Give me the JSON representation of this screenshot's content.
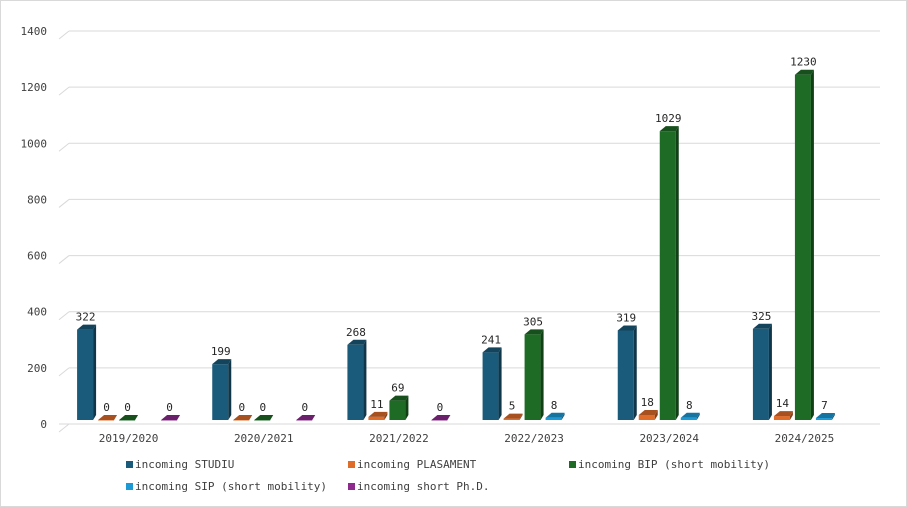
{
  "chart_data": {
    "type": "bar",
    "title": "",
    "xlabel": "",
    "ylabel": "",
    "ylim": [
      0,
      1400
    ],
    "yticks": [
      0,
      200,
      400,
      600,
      800,
      1000,
      1200,
      1400
    ],
    "grid": true,
    "legend_position": "bottom",
    "categories": [
      "2019/2020",
      "2020/2021",
      "2021/2022",
      "2022/2023",
      "2023/2024",
      "2024/2025"
    ],
    "series": [
      {
        "name": "incoming STUDIU",
        "color": "#1a5a7a",
        "values": [
          322,
          199,
          268,
          241,
          319,
          325
        ],
        "labels": [
          "322",
          "199",
          "268",
          "241",
          "319",
          "325"
        ]
      },
      {
        "name": "incoming PLASAMENT",
        "color": "#e06c2a",
        "values": [
          0,
          0,
          11,
          5,
          18,
          14
        ],
        "labels": [
          "0",
          "0",
          "11",
          "5",
          "18",
          "14"
        ]
      },
      {
        "name": "incoming BIP (short mobility)",
        "color": "#1e6b25",
        "values": [
          0,
          0,
          69,
          305,
          1029,
          1230
        ],
        "labels": [
          "0",
          "0",
          "69",
          "305",
          "1029",
          "1230"
        ]
      },
      {
        "name": "incoming SIP (short mobility)",
        "color": "#1d9ad6",
        "values": [
          null,
          null,
          null,
          8,
          8,
          7
        ],
        "labels": [
          "",
          "",
          "",
          "8",
          "8",
          "7"
        ]
      },
      {
        "name": "incoming short Ph.D.",
        "color": "#8e2a8e",
        "values": [
          0,
          0,
          0,
          null,
          null,
          null
        ],
        "labels": [
          "0",
          "0",
          "0",
          "",
          "",
          ""
        ]
      }
    ]
  }
}
